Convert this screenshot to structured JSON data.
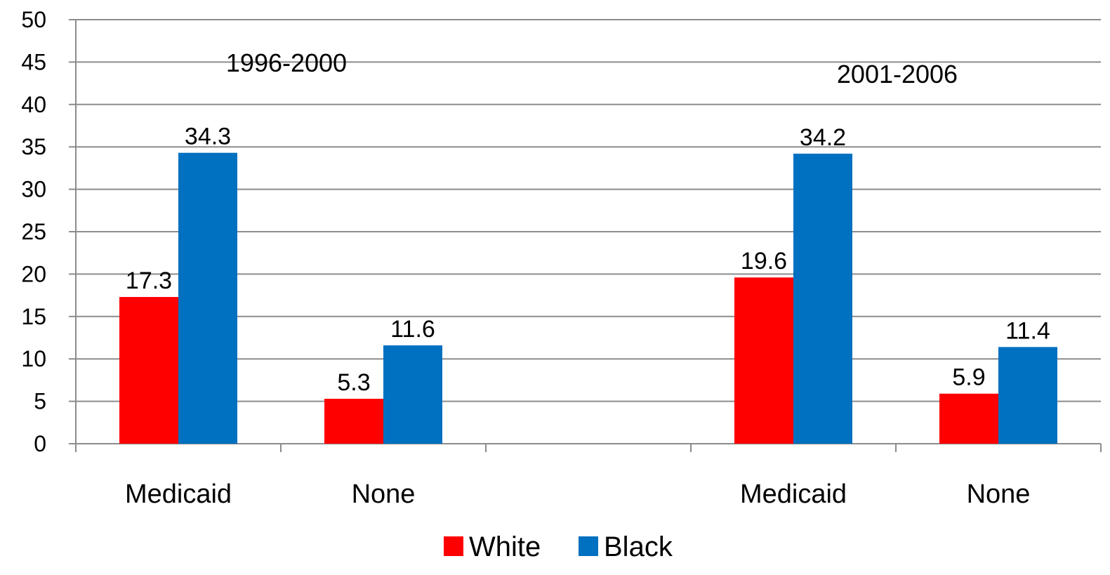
{
  "chart_data": {
    "type": "bar",
    "ylim": [
      0,
      50
    ],
    "yticks": [
      "0",
      "5",
      "10",
      "15",
      "20",
      "25",
      "30",
      "35",
      "40",
      "45",
      "50"
    ],
    "grid": true,
    "legend_position": "bottom",
    "periods": [
      {
        "label": "1996-2000",
        "categories": [
          "Medicaid",
          "None"
        ],
        "series": [
          {
            "name": "White",
            "color": "#ff0000",
            "values": [
              17.3,
              5.3
            ],
            "labels": [
              "17.3",
              "5.3"
            ]
          },
          {
            "name": "Black",
            "color": "#0070c0",
            "values": [
              34.3,
              11.6
            ],
            "labels": [
              "34.3",
              "11.6"
            ]
          }
        ]
      },
      {
        "label": "2001-2006",
        "categories": [
          "Medicaid",
          "None"
        ],
        "series": [
          {
            "name": "White",
            "color": "#ff0000",
            "values": [
              19.6,
              5.9
            ],
            "labels": [
              "19.6",
              "5.9"
            ]
          },
          {
            "name": "Black",
            "color": "#0070c0",
            "values": [
              34.2,
              11.4
            ],
            "labels": [
              "34.2",
              "11.4"
            ]
          }
        ]
      }
    ],
    "legend": [
      {
        "name": "White",
        "color": "#ff0000"
      },
      {
        "name": "Black",
        "color": "#0070c0"
      }
    ]
  }
}
